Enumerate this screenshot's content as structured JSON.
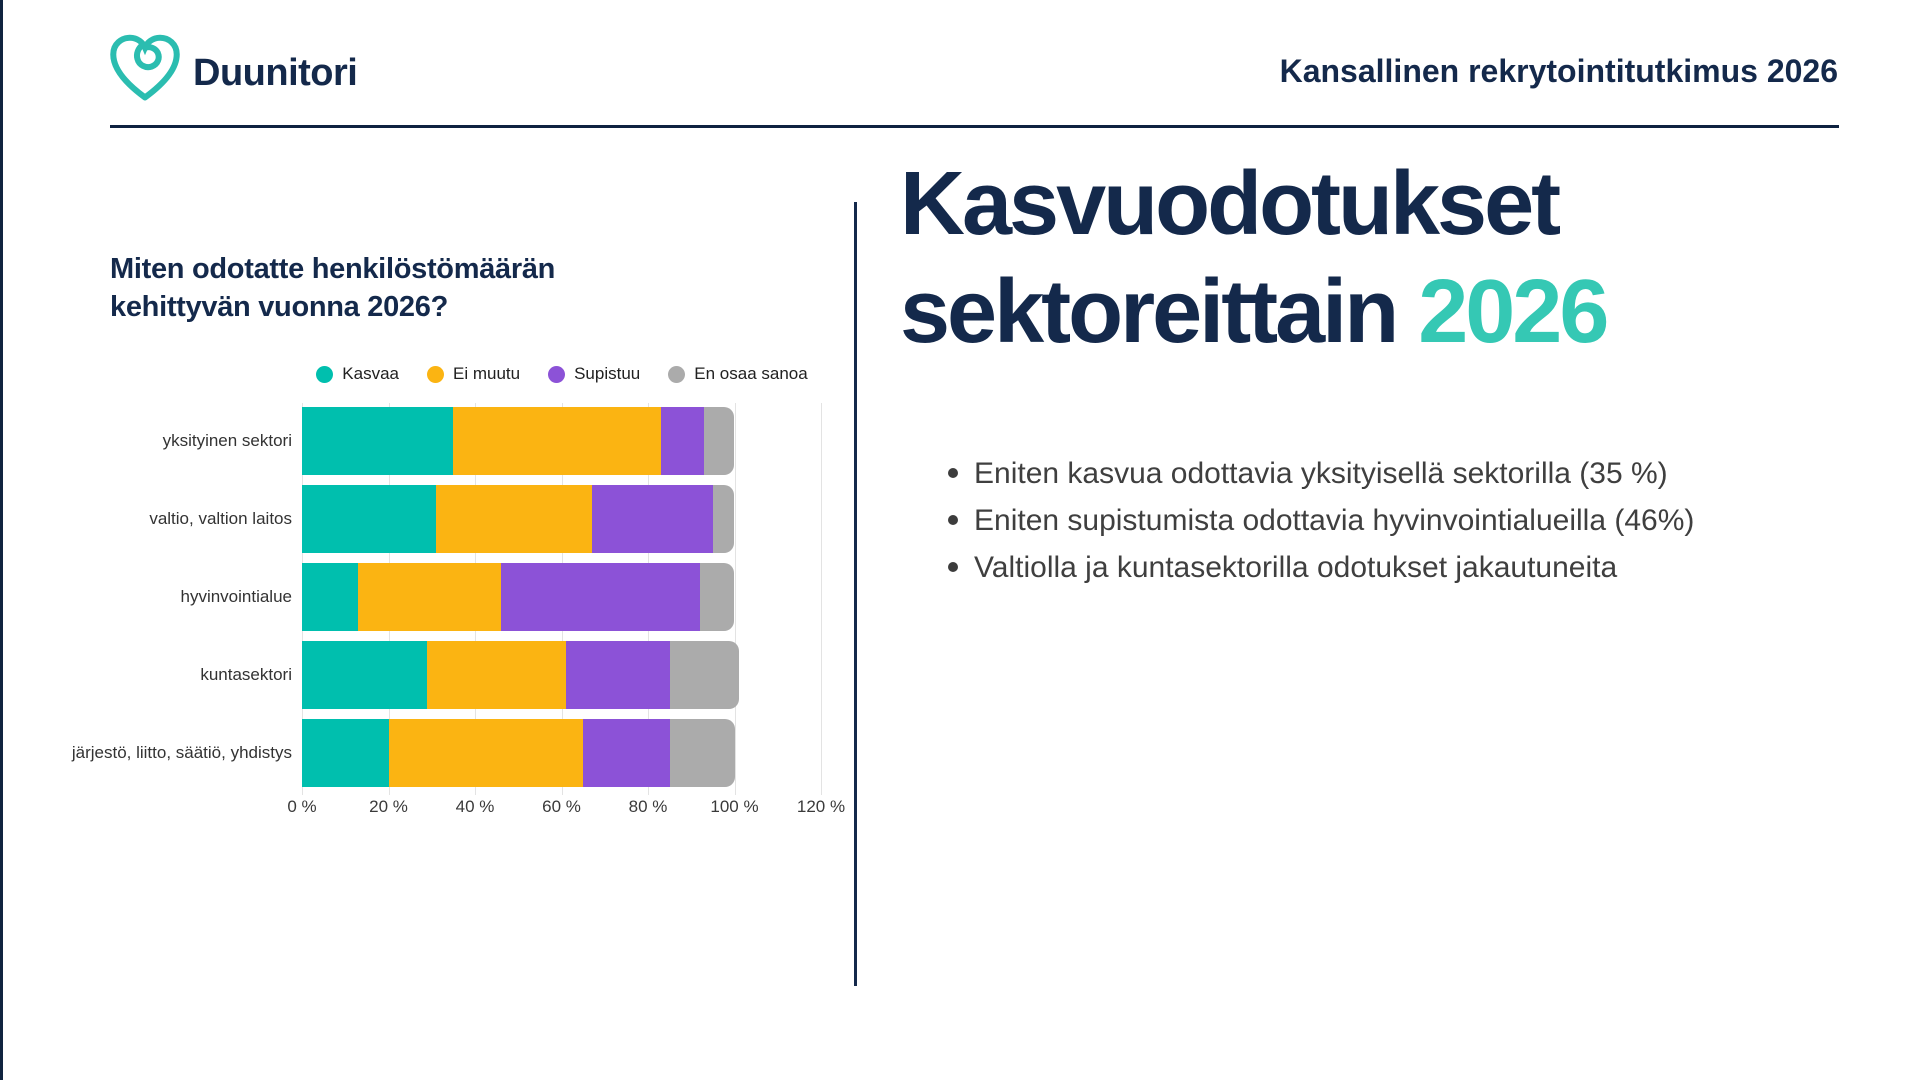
{
  "header": {
    "brand": "Duunitori",
    "report_title": "Kansallinen rekrytointitutkimus 2026"
  },
  "left": {
    "question_line1": "Miten odotatte henkilöstömäärän",
    "question_line2": "kehittyvän vuonna 2026?"
  },
  "chart_data": {
    "type": "bar",
    "orientation": "horizontal",
    "stacked": true,
    "title": "Miten odotatte henkilöstömäärän kehittyvän vuonna 2026?",
    "categories": [
      "yksityinen sektori",
      "valtio, valtion laitos",
      "hyvinvointialue",
      "kuntasektori",
      "järjestö, liitto, säätiö, yhdistys"
    ],
    "series": [
      {
        "name": "Kasvaa",
        "color": "#00BFAE",
        "values": [
          35,
          31,
          13,
          29,
          20
        ]
      },
      {
        "name": "Ei muutu",
        "color": "#FBB412",
        "values": [
          48,
          36,
          33,
          32,
          45
        ]
      },
      {
        "name": "Supistuu",
        "color": "#8C52D7",
        "values": [
          10,
          28,
          46,
          24,
          20
        ]
      },
      {
        "name": "En osaa sanoa",
        "color": "#ABABAB",
        "values": [
          7,
          5,
          8,
          16,
          15
        ]
      }
    ],
    "x_ticks": [
      "0 %",
      "20 %",
      "40 %",
      "60 %",
      "80 %",
      "100 %",
      "120 %"
    ],
    "xlim": [
      0,
      120
    ],
    "grid": true,
    "legend_position": "top"
  },
  "right": {
    "title_line1": "Kasvuodotukset",
    "title_line2": "sektoreittain",
    "title_accent": "2026",
    "bullets": [
      "Eniten kasvua odottavia yksityisellä sektorilla (35 %)",
      "Eniten supistumista odottavia hyvinvointialueilla (46%)",
      "Valtiolla ja kuntasektorilla odotukset jakautuneita"
    ]
  },
  "colors": {
    "navy": "#14294B",
    "teal_accent": "#35C8B4",
    "logo_teal": "#2BBDB0",
    "bullet_text": "#3F3F3F"
  }
}
